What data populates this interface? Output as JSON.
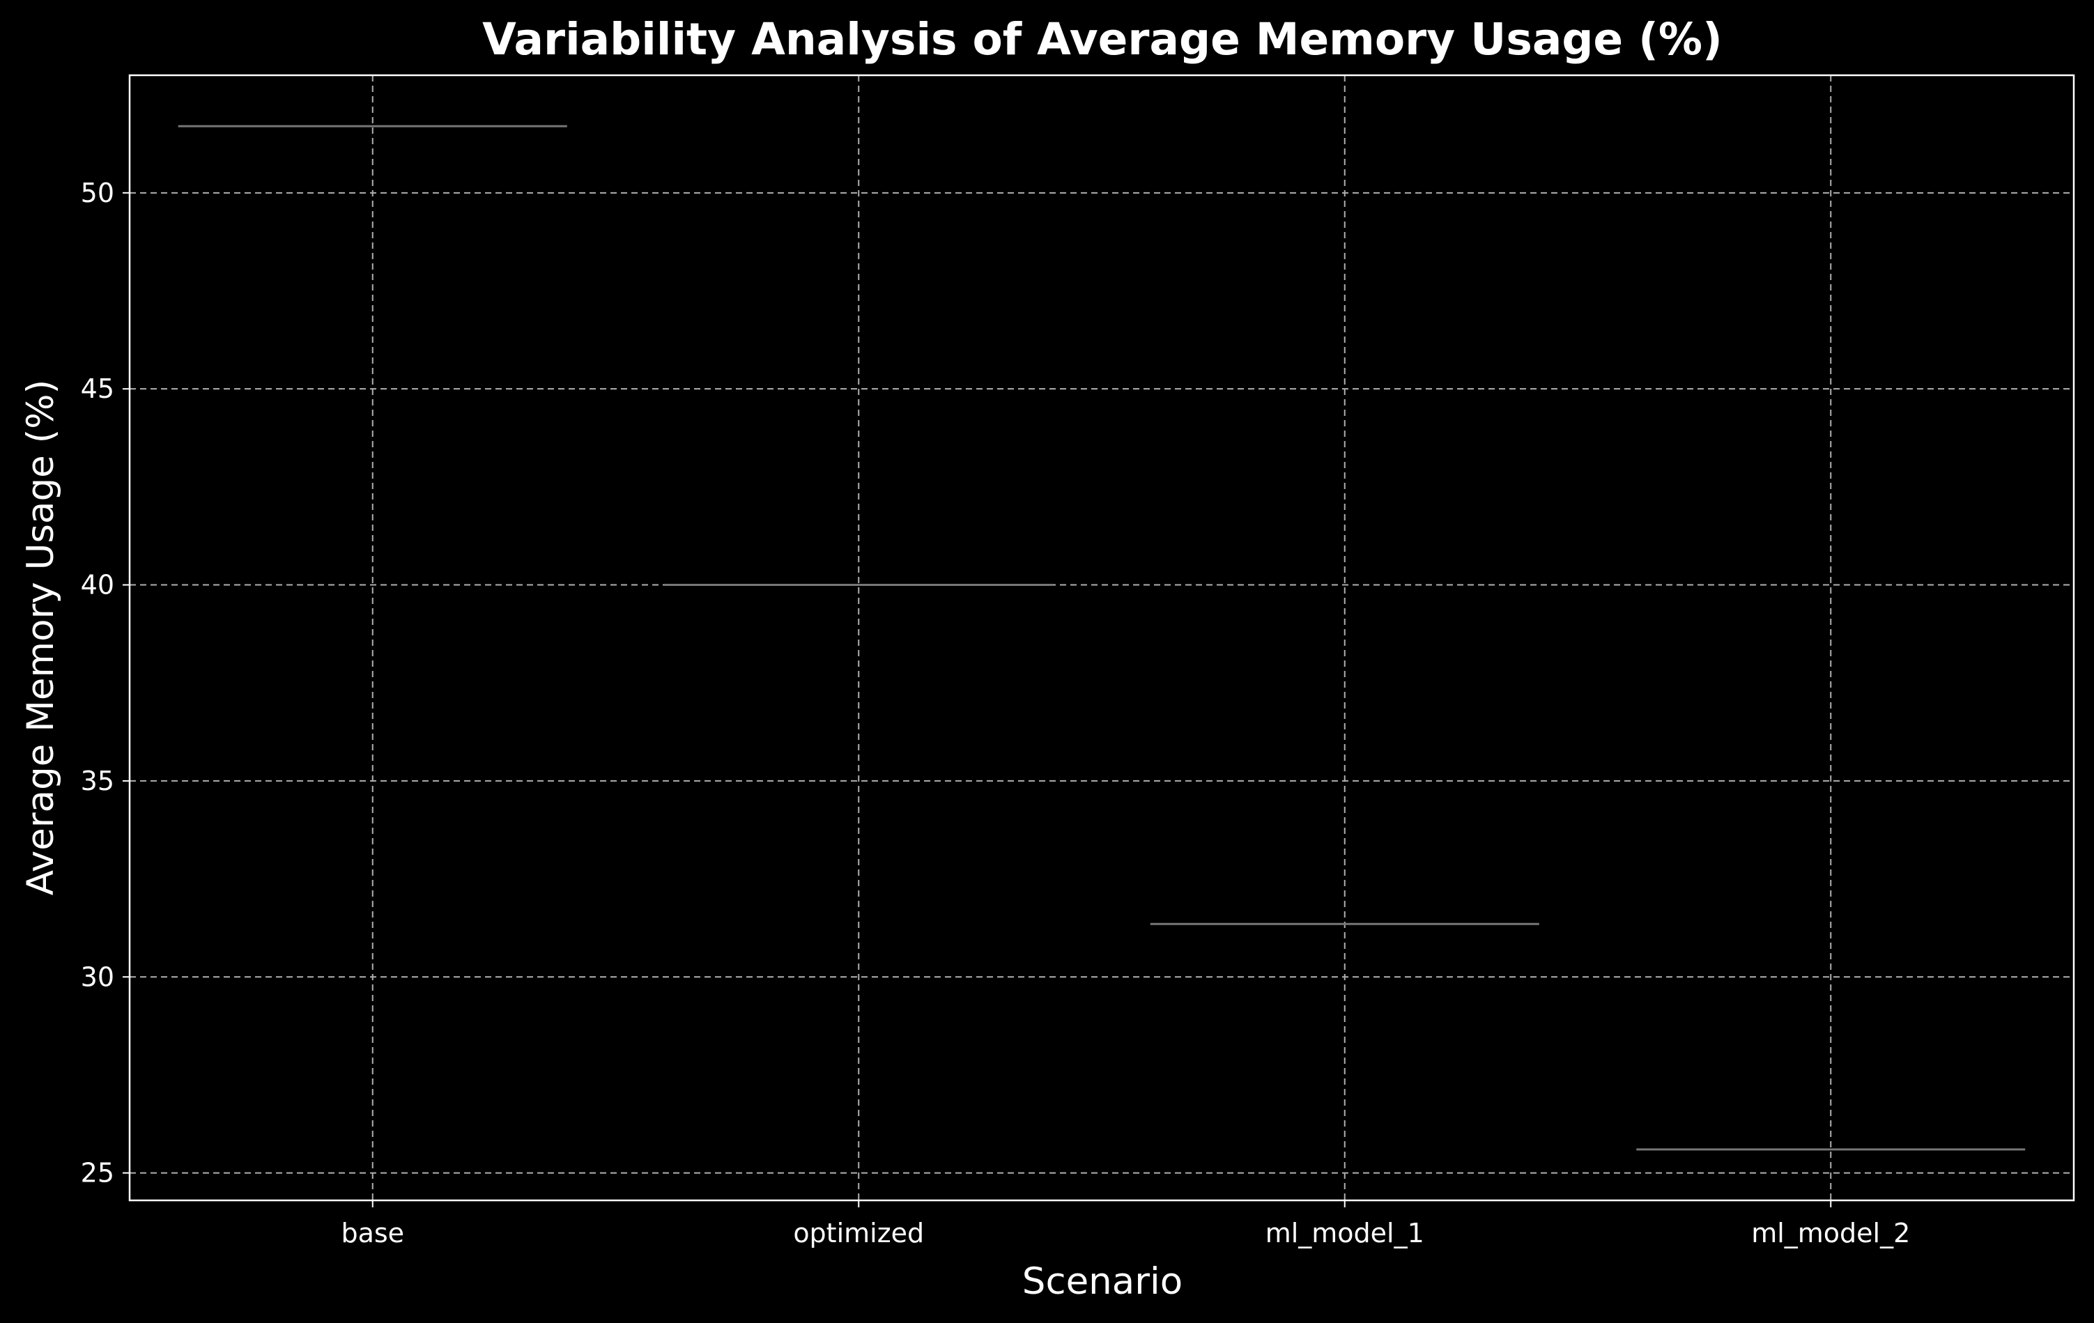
{
  "chart_data": {
    "type": "box",
    "title": "Variability Analysis of Average Memory Usage (%)",
    "xlabel": "Scenario",
    "ylabel": "Average Memory Usage (%)",
    "categories": [
      "base",
      "optimized",
      "ml_model_1",
      "ml_model_2"
    ],
    "values": [
      51.7,
      40.0,
      31.35,
      25.6
    ],
    "ylim": [
      24.3,
      53.0
    ],
    "yticks": [
      25,
      30,
      35,
      40,
      45,
      50
    ],
    "grid": true,
    "grid_style": "dashed",
    "background": "#000000",
    "text_color": "#ffffff",
    "grid_color": "#b0b0b0",
    "line_color": "#777777"
  }
}
